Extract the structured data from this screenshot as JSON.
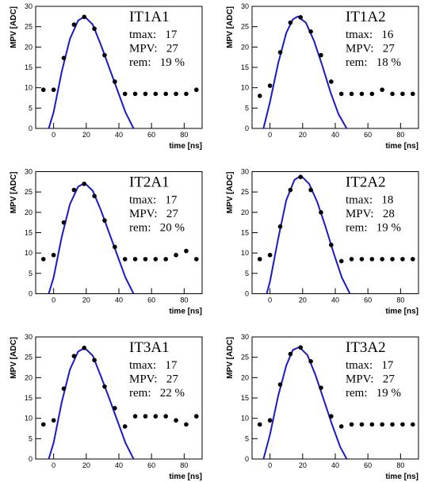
{
  "chart_data": [
    {
      "type": "scatter",
      "title": "IT1A1",
      "annotations": [
        "tmax:   17",
        "MPV:   27",
        "rem:   19 %"
      ],
      "x_label": "time [ns]",
      "y_label": "MPV [ADC]",
      "x": [
        -6.25,
        0,
        6.25,
        12.5,
        18.75,
        25,
        31.25,
        37.5,
        43.75,
        50,
        56.25,
        62.5,
        68.75,
        75,
        81.25,
        87.5
      ],
      "values": [
        9.5,
        9.5,
        17.3,
        25.5,
        27.4,
        24.5,
        18,
        11.5,
        8.5,
        8.5,
        8.5,
        8.5,
        8.5,
        8.5,
        8.5,
        9.5
      ],
      "color": "#000000",
      "fit": {
        "x": [
          -3,
          0,
          5,
          10,
          15,
          19,
          24,
          29,
          34,
          39,
          44,
          49
        ],
        "values": [
          0,
          4,
          14,
          22,
          26.5,
          27.5,
          25.5,
          20.5,
          15,
          9.5,
          4,
          0
        ],
        "color": "#1a1acc"
      },
      "xlim": [
        -11,
        91
      ],
      "ylim": [
        0,
        30
      ],
      "xticks": [
        0,
        20,
        40,
        60,
        80
      ],
      "yticks": [
        0,
        5,
        10,
        15,
        20,
        25,
        30
      ]
    },
    {
      "type": "scatter",
      "title": "IT1A2",
      "annotations": [
        "tmax:   16",
        "MPV:   27",
        "rem:   18 %"
      ],
      "x_label": "time [ns]",
      "y_label": "MPV [ADC]",
      "x": [
        -6.25,
        0,
        6.25,
        12.5,
        18.75,
        25,
        31.25,
        37.5,
        43.75,
        50,
        56.25,
        62.5,
        68.75,
        75,
        81.25,
        87.5
      ],
      "values": [
        8,
        10.5,
        18.7,
        26,
        27.3,
        23.8,
        18,
        11.5,
        8.5,
        8.5,
        8.5,
        8.5,
        9.5,
        8.5,
        8.5,
        8.5
      ],
      "color": "#000000",
      "fit": {
        "x": [
          -4,
          0,
          5,
          10,
          14,
          17,
          22,
          27,
          32,
          37,
          42,
          47
        ],
        "values": [
          0,
          6.5,
          16,
          23.5,
          26.8,
          27.5,
          26,
          21.5,
          15.5,
          9,
          3.5,
          0
        ],
        "color": "#1a1acc"
      },
      "xlim": [
        -11,
        91
      ],
      "ylim": [
        0,
        30
      ],
      "xticks": [
        0,
        20,
        40,
        60,
        80
      ],
      "yticks": [
        0,
        5,
        10,
        15,
        20,
        25,
        30
      ]
    },
    {
      "type": "scatter",
      "title": "IT2A1",
      "annotations": [
        "tmax:   17",
        "MPV:   27",
        "rem:   20 %"
      ],
      "x_label": "time [ns]",
      "y_label": "MPV [ADC]",
      "x": [
        -6.25,
        0,
        6.25,
        12.5,
        18.75,
        25,
        31.25,
        37.5,
        43.75,
        50,
        56.25,
        62.5,
        68.75,
        75,
        81.25,
        87.5
      ],
      "values": [
        8.5,
        9.5,
        17.5,
        25.5,
        27,
        24,
        18,
        11.5,
        8.5,
        8.5,
        8.5,
        8.5,
        8.5,
        9.5,
        10.5,
        8.5
      ],
      "color": "#000000",
      "fit": {
        "x": [
          -3,
          0,
          5,
          10,
          15,
          19,
          24,
          29,
          34,
          39,
          44,
          49
        ],
        "values": [
          0,
          4,
          14,
          22,
          26.3,
          27.2,
          25.3,
          20.5,
          15,
          9.5,
          4,
          0
        ],
        "color": "#1a1acc"
      },
      "xlim": [
        -11,
        91
      ],
      "ylim": [
        0,
        30
      ],
      "xticks": [
        0,
        20,
        40,
        60,
        80
      ],
      "yticks": [
        0,
        5,
        10,
        15,
        20,
        25,
        30
      ]
    },
    {
      "type": "scatter",
      "title": "IT2A2",
      "annotations": [
        "tmax:   18",
        "MPV:   28",
        "rem:   19 %"
      ],
      "x_label": "time [ns]",
      "y_label": "MPV [ADC]",
      "x": [
        -6.25,
        0,
        6.25,
        12.5,
        18.75,
        25,
        31.25,
        37.5,
        43.75,
        50,
        56.25,
        62.5,
        68.75,
        75,
        81.25,
        87.5
      ],
      "values": [
        8.5,
        9.5,
        16.5,
        25.5,
        28.7,
        25.5,
        20,
        12,
        8,
        8.5,
        8.5,
        8.5,
        8.5,
        8.5,
        8.5,
        8.5
      ],
      "color": "#000000",
      "fit": {
        "x": [
          -2,
          0,
          5,
          10,
          15,
          19,
          24,
          29,
          34,
          39,
          44,
          49
        ],
        "values": [
          0,
          3,
          13.5,
          23,
          28,
          29,
          27,
          22.5,
          16.5,
          10,
          4,
          0
        ],
        "color": "#1a1acc"
      },
      "xlim": [
        -11,
        91
      ],
      "ylim": [
        0,
        30
      ],
      "xticks": [
        0,
        20,
        40,
        60,
        80
      ],
      "yticks": [
        0,
        5,
        10,
        15,
        20,
        25,
        30
      ]
    },
    {
      "type": "scatter",
      "title": "IT3A1",
      "annotations": [
        "tmax:   17",
        "MPV:   27",
        "rem:   22 %"
      ],
      "x_label": "time [ns]",
      "y_label": "MPV [ADC]",
      "x": [
        -6.25,
        0,
        6.25,
        12.5,
        18.75,
        25,
        31.25,
        37.5,
        43.75,
        50,
        56.25,
        62.5,
        68.75,
        75,
        81.25,
        87.5
      ],
      "values": [
        8.5,
        9.5,
        17.3,
        25.3,
        27.3,
        24.3,
        17.8,
        12.5,
        8,
        10.5,
        10.5,
        10.5,
        10.5,
        9.5,
        8.5,
        10.5
      ],
      "color": "#000000",
      "fit": {
        "x": [
          -3,
          0,
          5,
          10,
          15,
          19,
          24,
          29,
          34,
          39,
          44,
          49
        ],
        "values": [
          0,
          4,
          14,
          22,
          26.4,
          27.3,
          25.4,
          20.3,
          15,
          9.5,
          4,
          0
        ],
        "color": "#1a1acc"
      },
      "xlim": [
        -11,
        91
      ],
      "ylim": [
        0,
        30
      ],
      "xticks": [
        0,
        20,
        40,
        60,
        80
      ],
      "yticks": [
        0,
        5,
        10,
        15,
        20,
        25,
        30
      ]
    },
    {
      "type": "scatter",
      "title": "IT3A2",
      "annotations": [
        "tmax:   17",
        "MPV:   27",
        "rem:   19 %"
      ],
      "x_label": "time [ns]",
      "y_label": "MPV [ADC]",
      "x": [
        -6.25,
        0,
        6.25,
        12.5,
        18.75,
        25,
        31.25,
        37.5,
        43.75,
        50,
        56.25,
        62.5,
        68.75,
        75,
        81.25,
        87.5
      ],
      "values": [
        8.5,
        9.5,
        18.3,
        25.8,
        27.4,
        24,
        17.5,
        10.5,
        8,
        8.5,
        8.5,
        8.5,
        8.5,
        8.5,
        8.5,
        8.5
      ],
      "color": "#000000",
      "fit": {
        "x": [
          -4,
          0,
          5,
          10,
          14,
          18,
          23,
          28,
          33,
          38,
          43,
          47
        ],
        "values": [
          0,
          6,
          15.5,
          23,
          26.8,
          27.5,
          25.5,
          20.5,
          14.5,
          8.5,
          3,
          0
        ],
        "color": "#1a1acc"
      },
      "xlim": [
        -11,
        91
      ],
      "ylim": [
        0,
        30
      ],
      "xticks": [
        0,
        20,
        40,
        60,
        80
      ],
      "yticks": [
        0,
        5,
        10,
        15,
        20,
        25,
        30
      ]
    }
  ]
}
